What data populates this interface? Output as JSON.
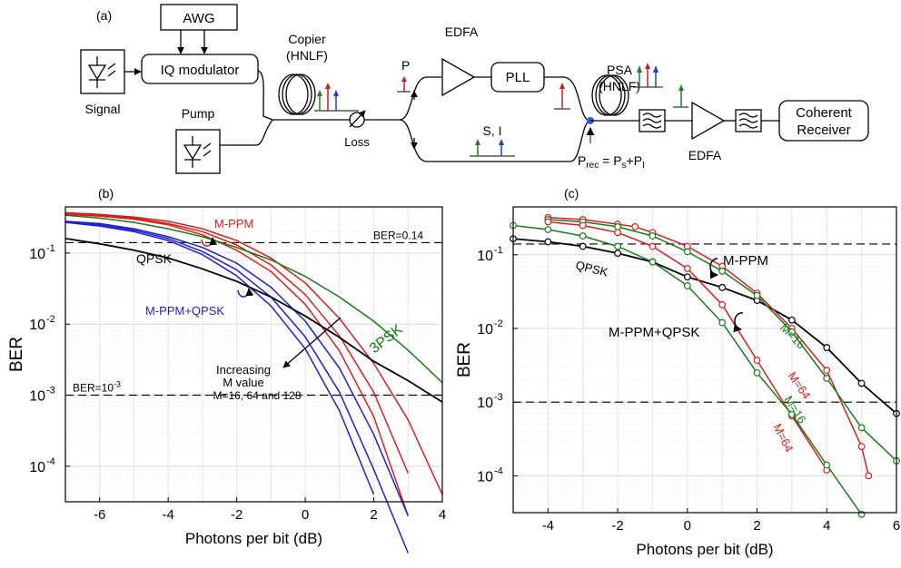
{
  "diagram": {
    "panel": "(a)",
    "awg": "AWG",
    "iq_modulator": "IQ modulator",
    "signal": "Signal",
    "pump": "Pump",
    "copier": "Copier",
    "copier_sub": "(HNLF)",
    "loss": "Loss",
    "p": "P",
    "edfa_top": "EDFA",
    "pll": "PLL",
    "si": "S, I",
    "psa": "PSA",
    "psa_sub": "(HNLF)",
    "edfa_bottom": "EDFA",
    "coherent": "Coherent",
    "receiver": "Receiver",
    "prec": "P",
    "prec_sub": "rec",
    "prec_eq": " = P",
    "prec_s": "s",
    "prec_plus": "+P",
    "prec_i": "I"
  },
  "chart_data": [
    {
      "panel": "(b)",
      "type": "line",
      "xlabel": "Photons per bit (dB)",
      "ylabel": "BER",
      "xlim": [
        -7,
        4
      ],
      "ylim_log10": [
        -4.5,
        -0.35
      ],
      "y_scale": "log",
      "xticks": [
        "-6",
        "-4",
        "-2",
        "0",
        "2",
        "4"
      ],
      "yticks": [
        {
          "base": "10",
          "exp": "-1"
        },
        {
          "base": "10",
          "exp": "-2"
        },
        {
          "base": "10",
          "exp": "-3"
        },
        {
          "base": "10",
          "exp": "-4"
        }
      ],
      "grid": true,
      "hlines": [
        {
          "y": 0.14,
          "label": "BER=0.14"
        },
        {
          "y": 0.001,
          "label": "BER=10",
          "label_exp": "-3"
        }
      ],
      "annotations": [
        {
          "text": "M-PPM",
          "color": "#d62020"
        },
        {
          "text": "QPSK",
          "color": "#000000"
        },
        {
          "text": "M-PPM+QPSK",
          "color": "#1f1fd0"
        },
        {
          "text": "3PSK",
          "color": "#1a7a1a"
        },
        {
          "text": "Increasing",
          "color": "#000000"
        },
        {
          "text": "M value",
          "color": "#000000"
        },
        {
          "text": "M=16, 64 and 128",
          "color": "#000000"
        }
      ],
      "series": [
        {
          "color": "#d62020",
          "x": [
            -7,
            -6,
            -5,
            -4,
            -3,
            -2,
            -1,
            0,
            1,
            2,
            3,
            4
          ],
          "y": [
            0.37,
            0.35,
            0.32,
            0.28,
            0.22,
            0.15,
            0.085,
            0.038,
            0.012,
            0.0028,
            0.00045,
            4e-05
          ]
        },
        {
          "color": "#d62020",
          "x": [
            -7,
            -6,
            -5,
            -4,
            -3,
            -2,
            -1,
            0,
            1,
            2,
            3
          ],
          "y": [
            0.36,
            0.34,
            0.31,
            0.26,
            0.2,
            0.13,
            0.068,
            0.026,
            0.0068,
            0.0011,
            8e-05
          ]
        },
        {
          "color": "#d62020",
          "x": [
            -7,
            -6,
            -5,
            -4,
            -3,
            -2,
            -1,
            0,
            1,
            2,
            3
          ],
          "y": [
            0.35,
            0.33,
            0.3,
            0.25,
            0.18,
            0.11,
            0.055,
            0.019,
            0.0042,
            0.0005,
            2e-05
          ]
        },
        {
          "color": "#1f1fd0",
          "x": [
            -7,
            -6,
            -5,
            -4,
            -3,
            -2,
            -1,
            0,
            1,
            2,
            3
          ],
          "y": [
            0.28,
            0.26,
            0.22,
            0.17,
            0.12,
            0.072,
            0.033,
            0.011,
            0.0024,
            0.00028,
            2e-05
          ]
        },
        {
          "color": "#1f1fd0",
          "x": [
            -7,
            -6,
            -5,
            -4,
            -3,
            -2,
            -1,
            0,
            1,
            2,
            3
          ],
          "y": [
            0.27,
            0.25,
            0.21,
            0.16,
            0.105,
            0.058,
            0.024,
            0.0066,
            0.0011,
            9e-05,
            6e-06
          ]
        },
        {
          "color": "#1f1fd0",
          "x": [
            -7,
            -6,
            -5,
            -4,
            -3,
            -2,
            -1,
            0,
            1,
            2
          ],
          "y": [
            0.27,
            0.24,
            0.2,
            0.15,
            0.095,
            0.048,
            0.018,
            0.0045,
            0.0006,
            4e-05
          ]
        },
        {
          "color": "#000000",
          "x": [
            -7,
            -6,
            -5,
            -4,
            -3,
            -2,
            -1,
            0,
            1,
            2,
            3,
            4
          ],
          "y": [
            0.16,
            0.135,
            0.11,
            0.085,
            0.06,
            0.04,
            0.024,
            0.013,
            0.0065,
            0.003,
            0.0016,
            0.0008
          ]
        },
        {
          "color": "#1a7a1a",
          "x": [
            -7,
            -6,
            -5,
            -4,
            -3,
            -2,
            -1,
            0,
            1,
            2,
            3,
            4
          ],
          "y": [
            0.34,
            0.31,
            0.27,
            0.22,
            0.17,
            0.12,
            0.08,
            0.047,
            0.024,
            0.011,
            0.0043,
            0.0015
          ]
        }
      ]
    },
    {
      "panel": "(c)",
      "type": "line",
      "xlabel": "Photons per bit (dB)",
      "ylabel": "BER",
      "xlim": [
        -5,
        6
      ],
      "ylim_log10": [
        -4.5,
        -0.35
      ],
      "y_scale": "log",
      "xticks": [
        "-4",
        "-2",
        "0",
        "2",
        "4",
        "6"
      ],
      "yticks": [
        {
          "base": "10",
          "exp": "-1"
        },
        {
          "base": "10",
          "exp": "-2"
        },
        {
          "base": "10",
          "exp": "-3"
        },
        {
          "base": "10",
          "exp": "-4"
        }
      ],
      "grid": true,
      "hlines": [
        {
          "y": 0.14,
          "label": ""
        },
        {
          "y": 0.001,
          "label": ""
        }
      ],
      "annotations": [
        {
          "text": "QPSK",
          "color": "#000000"
        },
        {
          "text": "M-PPM",
          "color": "#000000"
        },
        {
          "text": "M-PPM+QPSK",
          "color": "#000000"
        },
        {
          "text": "M=16",
          "color": "#1a7a1a"
        },
        {
          "text": "M=64",
          "color": "#d62020"
        },
        {
          "text": "M=16",
          "color": "#1a7a1a"
        },
        {
          "text": "M=64",
          "color": "#d62020"
        }
      ],
      "series": [
        {
          "color": "#000000",
          "markers": true,
          "x": [
            -5,
            -4,
            -3,
            -2,
            -1,
            0,
            1,
            2,
            3,
            4,
            5,
            6
          ],
          "y": [
            0.165,
            0.15,
            0.13,
            0.105,
            0.08,
            0.05,
            0.036,
            0.024,
            0.013,
            0.0055,
            0.0018,
            0.0007
          ]
        },
        {
          "color": "#d62020",
          "markers": true,
          "x": [
            -4,
            -3,
            -2,
            -1.5,
            -1,
            0,
            1,
            2,
            3,
            4,
            5,
            5.2
          ],
          "y": [
            0.32,
            0.3,
            0.26,
            0.24,
            0.2,
            0.13,
            0.07,
            0.03,
            0.01,
            0.0027,
            0.00025,
            0.0001
          ]
        },
        {
          "color": "#1a7a1a",
          "markers": true,
          "x": [
            -4,
            -3,
            -2,
            -1,
            0,
            1,
            2,
            3,
            4,
            5,
            6
          ],
          "y": [
            0.3,
            0.28,
            0.24,
            0.18,
            0.11,
            0.06,
            0.028,
            0.009,
            0.0021,
            0.00045,
            0.00016
          ]
        },
        {
          "color": "#d62020",
          "markers": true,
          "x": [
            -4,
            -3,
            -2,
            -1,
            0,
            1,
            2,
            3,
            4
          ],
          "y": [
            0.28,
            0.25,
            0.2,
            0.13,
            0.065,
            0.021,
            0.0037,
            0.00065,
            0.00012
          ]
        },
        {
          "color": "#1a7a1a",
          "markers": true,
          "x": [
            -5,
            -4,
            -3,
            -2,
            -1,
            0,
            1,
            2,
            3,
            4,
            5
          ],
          "y": [
            0.25,
            0.22,
            0.18,
            0.13,
            0.08,
            0.038,
            0.012,
            0.0025,
            0.00068,
            0.00014,
            3e-05
          ]
        }
      ]
    }
  ]
}
